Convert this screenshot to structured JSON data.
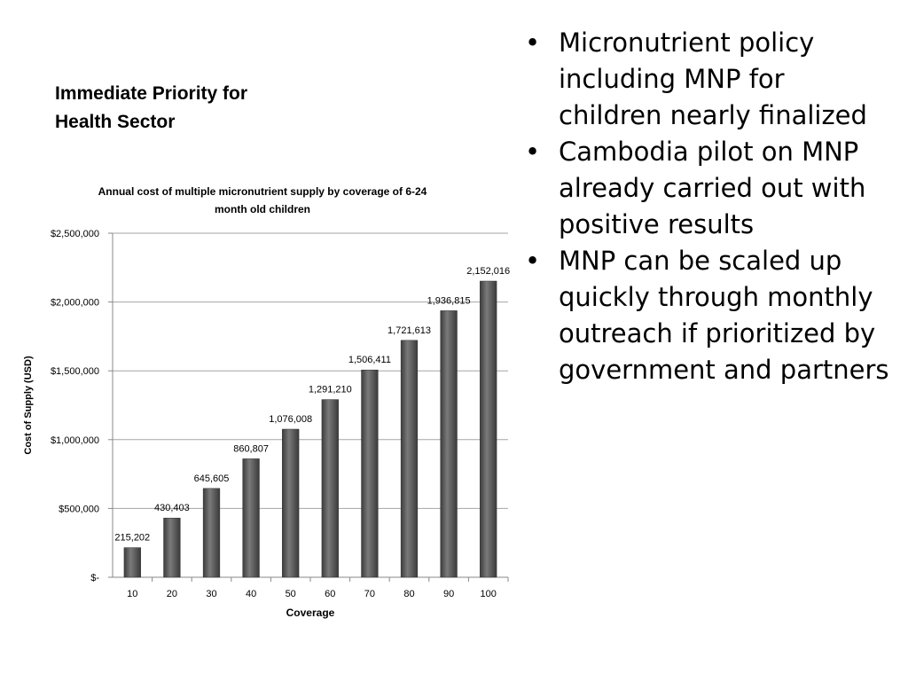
{
  "slide": {
    "title": "Immediate Priority for\nHealth Sector"
  },
  "bullets": [
    "Micronutrient policy including MNP for children nearly finalized",
    "Cambodia pilot on MNP already carried out with positive results",
    "MNP can be scaled up quickly through monthly outreach if prioritized by government and partners"
  ],
  "chart_data": {
    "type": "bar",
    "title_lines": [
      "Annual cost of multiple micronutrient supply by coverage of 6-24",
      "month old children"
    ],
    "xlabel": "Coverage",
    "ylabel": "Cost of Supply (USD)",
    "categories": [
      "10",
      "20",
      "30",
      "40",
      "50",
      "60",
      "70",
      "80",
      "90",
      "100"
    ],
    "values": [
      215202,
      430403,
      645605,
      860807,
      1076008,
      1291210,
      1506411,
      1721613,
      1936815,
      2152016
    ],
    "value_labels": [
      "215,202",
      "430,403",
      "645,605",
      "860,807",
      "1,076,008",
      "1,291,210",
      "1,506,411",
      "1,721,613",
      "1,936,815",
      "2,152,016"
    ],
    "ylim": [
      0,
      2500000
    ],
    "yticks": [
      0,
      500000,
      1000000,
      1500000,
      2000000,
      2500000
    ],
    "ytick_labels": [
      "$-",
      "$500,000",
      "$1,000,000",
      "$1,500,000",
      "$2,000,000",
      "$2,500,000"
    ],
    "grid": true,
    "bar_color": "#555555"
  }
}
